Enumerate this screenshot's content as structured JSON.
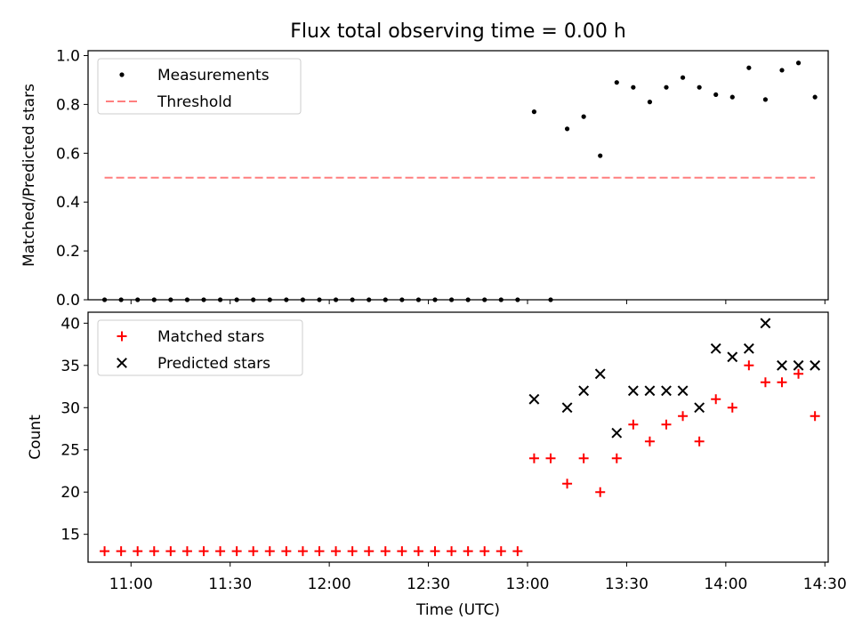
{
  "title": "Flux total observing time = 0.00 h",
  "xlabel": "Time (UTC)",
  "chart_data": [
    {
      "type": "scatter",
      "ylabel": "Matched/Predicted stars",
      "ylim": [
        0.0,
        1.02
      ],
      "yticks": [
        "0.0",
        "0.2",
        "0.4",
        "0.6",
        "0.8",
        "1.0"
      ],
      "xlim": [
        "10:47",
        "14:31"
      ],
      "legend": {
        "placement": "top-left",
        "entries": [
          "Measurements",
          "Threshold"
        ]
      },
      "series": [
        {
          "name": "Measurements",
          "marker": "dot",
          "color": "#000000",
          "x": [
            "10:52",
            "10:57",
            "11:02",
            "11:07",
            "11:12",
            "11:17",
            "11:22",
            "11:27",
            "11:32",
            "11:37",
            "11:42",
            "11:47",
            "11:52",
            "11:57",
            "12:02",
            "12:07",
            "12:12",
            "12:17",
            "12:22",
            "12:27",
            "12:32",
            "12:37",
            "12:42",
            "12:47",
            "12:52",
            "12:57",
            "13:02",
            "13:07",
            "13:12",
            "13:17",
            "13:22",
            "13:27",
            "13:32",
            "13:37",
            "13:42",
            "13:47",
            "13:52",
            "13:57",
            "14:02",
            "14:07",
            "14:12",
            "14:17",
            "14:22",
            "14:27"
          ],
          "y": [
            0,
            0,
            0,
            0,
            0,
            0,
            0,
            0,
            0,
            0,
            0,
            0,
            0,
            0,
            0,
            0,
            0,
            0,
            0,
            0,
            0,
            0,
            0,
            0,
            0,
            0,
            0.77,
            0,
            0.7,
            0.75,
            0.59,
            0.89,
            0.87,
            0.81,
            0.87,
            0.91,
            0.87,
            0.84,
            0.83,
            0.95,
            0.82,
            0.94,
            0.97,
            0.83
          ]
        },
        {
          "name": "Threshold",
          "style": "dashed",
          "color": "#ff7f7f",
          "x": [
            "10:52",
            "14:27"
          ],
          "y": [
            0.5,
            0.5
          ]
        }
      ]
    },
    {
      "type": "scatter",
      "ylabel": "Count",
      "ylim": [
        11.7,
        41.3
      ],
      "yticks": [
        "15",
        "20",
        "25",
        "30",
        "35",
        "40"
      ],
      "xlim": [
        "10:47",
        "14:31"
      ],
      "xticks": [
        "11:00",
        "11:30",
        "12:00",
        "12:30",
        "13:00",
        "13:30",
        "14:00",
        "14:30"
      ],
      "legend": {
        "placement": "top-left",
        "entries": [
          "Matched stars",
          "Predicted stars"
        ]
      },
      "series": [
        {
          "name": "Matched stars",
          "marker": "plus",
          "color": "#ff0000",
          "x": [
            "10:52",
            "10:57",
            "11:02",
            "11:07",
            "11:12",
            "11:17",
            "11:22",
            "11:27",
            "11:32",
            "11:37",
            "11:42",
            "11:47",
            "11:52",
            "11:57",
            "12:02",
            "12:07",
            "12:12",
            "12:17",
            "12:22",
            "12:27",
            "12:32",
            "12:37",
            "12:42",
            "12:47",
            "12:52",
            "12:57",
            "13:02",
            "13:07",
            "13:12",
            "13:17",
            "13:22",
            "13:27",
            "13:32",
            "13:37",
            "13:42",
            "13:47",
            "13:52",
            "13:57",
            "14:02",
            "14:07",
            "14:12",
            "14:17",
            "14:22",
            "14:27"
          ],
          "y": [
            13,
            13,
            13,
            13,
            13,
            13,
            13,
            13,
            13,
            13,
            13,
            13,
            13,
            13,
            13,
            13,
            13,
            13,
            13,
            13,
            13,
            13,
            13,
            13,
            13,
            13,
            24,
            24,
            21,
            24,
            20,
            24,
            28,
            26,
            28,
            29,
            26,
            31,
            30,
            35,
            33,
            33,
            34,
            29
          ]
        },
        {
          "name": "Predicted stars",
          "marker": "x",
          "color": "#000000",
          "x": [
            "13:02",
            "13:12",
            "13:17",
            "13:22",
            "13:27",
            "13:32",
            "13:37",
            "13:42",
            "13:47",
            "13:52",
            "13:57",
            "14:02",
            "14:07",
            "14:12",
            "14:17",
            "14:22",
            "14:27"
          ],
          "y": [
            31,
            30,
            32,
            34,
            27,
            32,
            32,
            32,
            32,
            30,
            37,
            36,
            37,
            40,
            35,
            35,
            35
          ]
        }
      ]
    }
  ]
}
